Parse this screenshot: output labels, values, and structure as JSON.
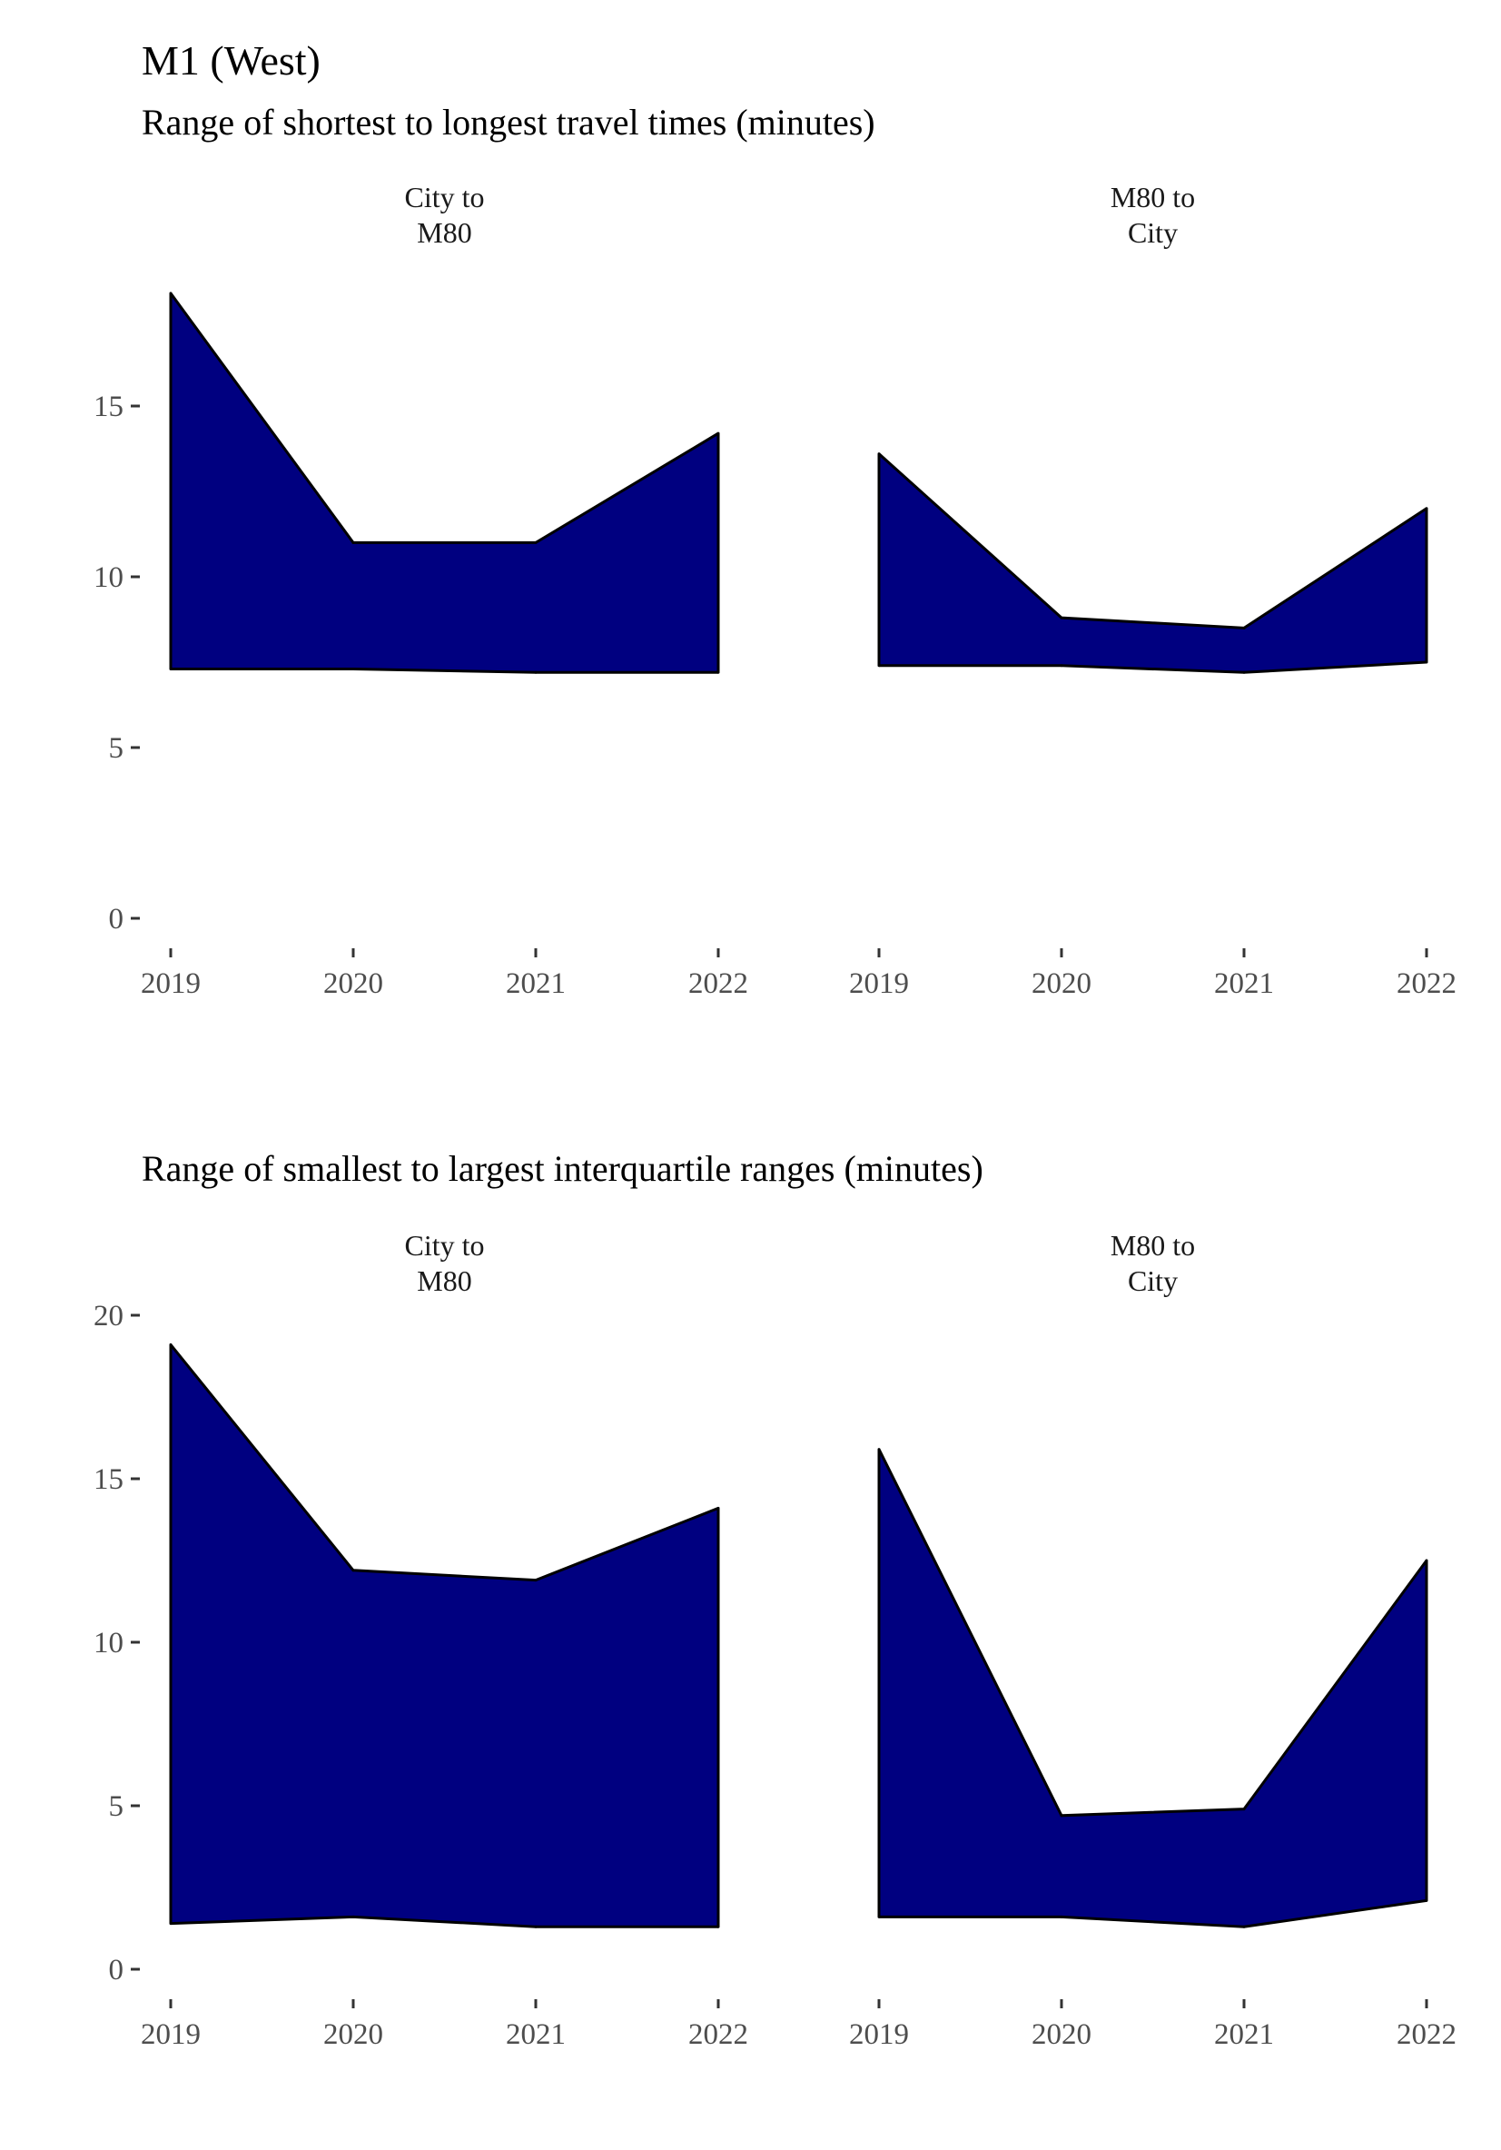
{
  "figure": {
    "title": "M1 (West)",
    "colors": {
      "fill": "#000080",
      "outline": "#000000",
      "axis": "#333333",
      "tick_text": "#4d4d4d"
    }
  },
  "chart_data": [
    {
      "type": "area",
      "title": "Range of shortest to longest travel times (minutes)",
      "ylim": [
        0,
        19
      ],
      "yticks": [
        0,
        5,
        10,
        15
      ],
      "xticks": [
        "2019",
        "2020",
        "2021",
        "2022"
      ],
      "grid": false,
      "facets": [
        {
          "name": "City to\nM80",
          "x": [
            2019,
            2020,
            2021,
            2022
          ],
          "lower": [
            7.3,
            7.3,
            7.2,
            7.2
          ],
          "upper": [
            18.3,
            11.0,
            11.0,
            14.2
          ]
        },
        {
          "name": "M80 to\nCity",
          "x": [
            2019,
            2020,
            2021,
            2022
          ],
          "lower": [
            7.4,
            7.4,
            7.2,
            7.5
          ],
          "upper": [
            13.6,
            8.8,
            8.5,
            12.0
          ]
        }
      ]
    },
    {
      "type": "area",
      "title": "Range of smallest to largest interquartile ranges (minutes)",
      "ylim": [
        0,
        20
      ],
      "yticks": [
        0,
        5,
        10,
        15,
        20
      ],
      "xticks": [
        "2019",
        "2020",
        "2021",
        "2022"
      ],
      "grid": false,
      "facets": [
        {
          "name": "City to\nM80",
          "x": [
            2019,
            2020,
            2021,
            2022
          ],
          "lower": [
            1.4,
            1.6,
            1.3,
            1.3
          ],
          "upper": [
            19.1,
            12.2,
            11.9,
            14.1
          ]
        },
        {
          "name": "M80 to\nCity",
          "x": [
            2019,
            2020,
            2021,
            2022
          ],
          "lower": [
            1.6,
            1.6,
            1.3,
            2.1
          ],
          "upper": [
            15.9,
            4.7,
            4.9,
            12.5
          ]
        }
      ]
    }
  ]
}
